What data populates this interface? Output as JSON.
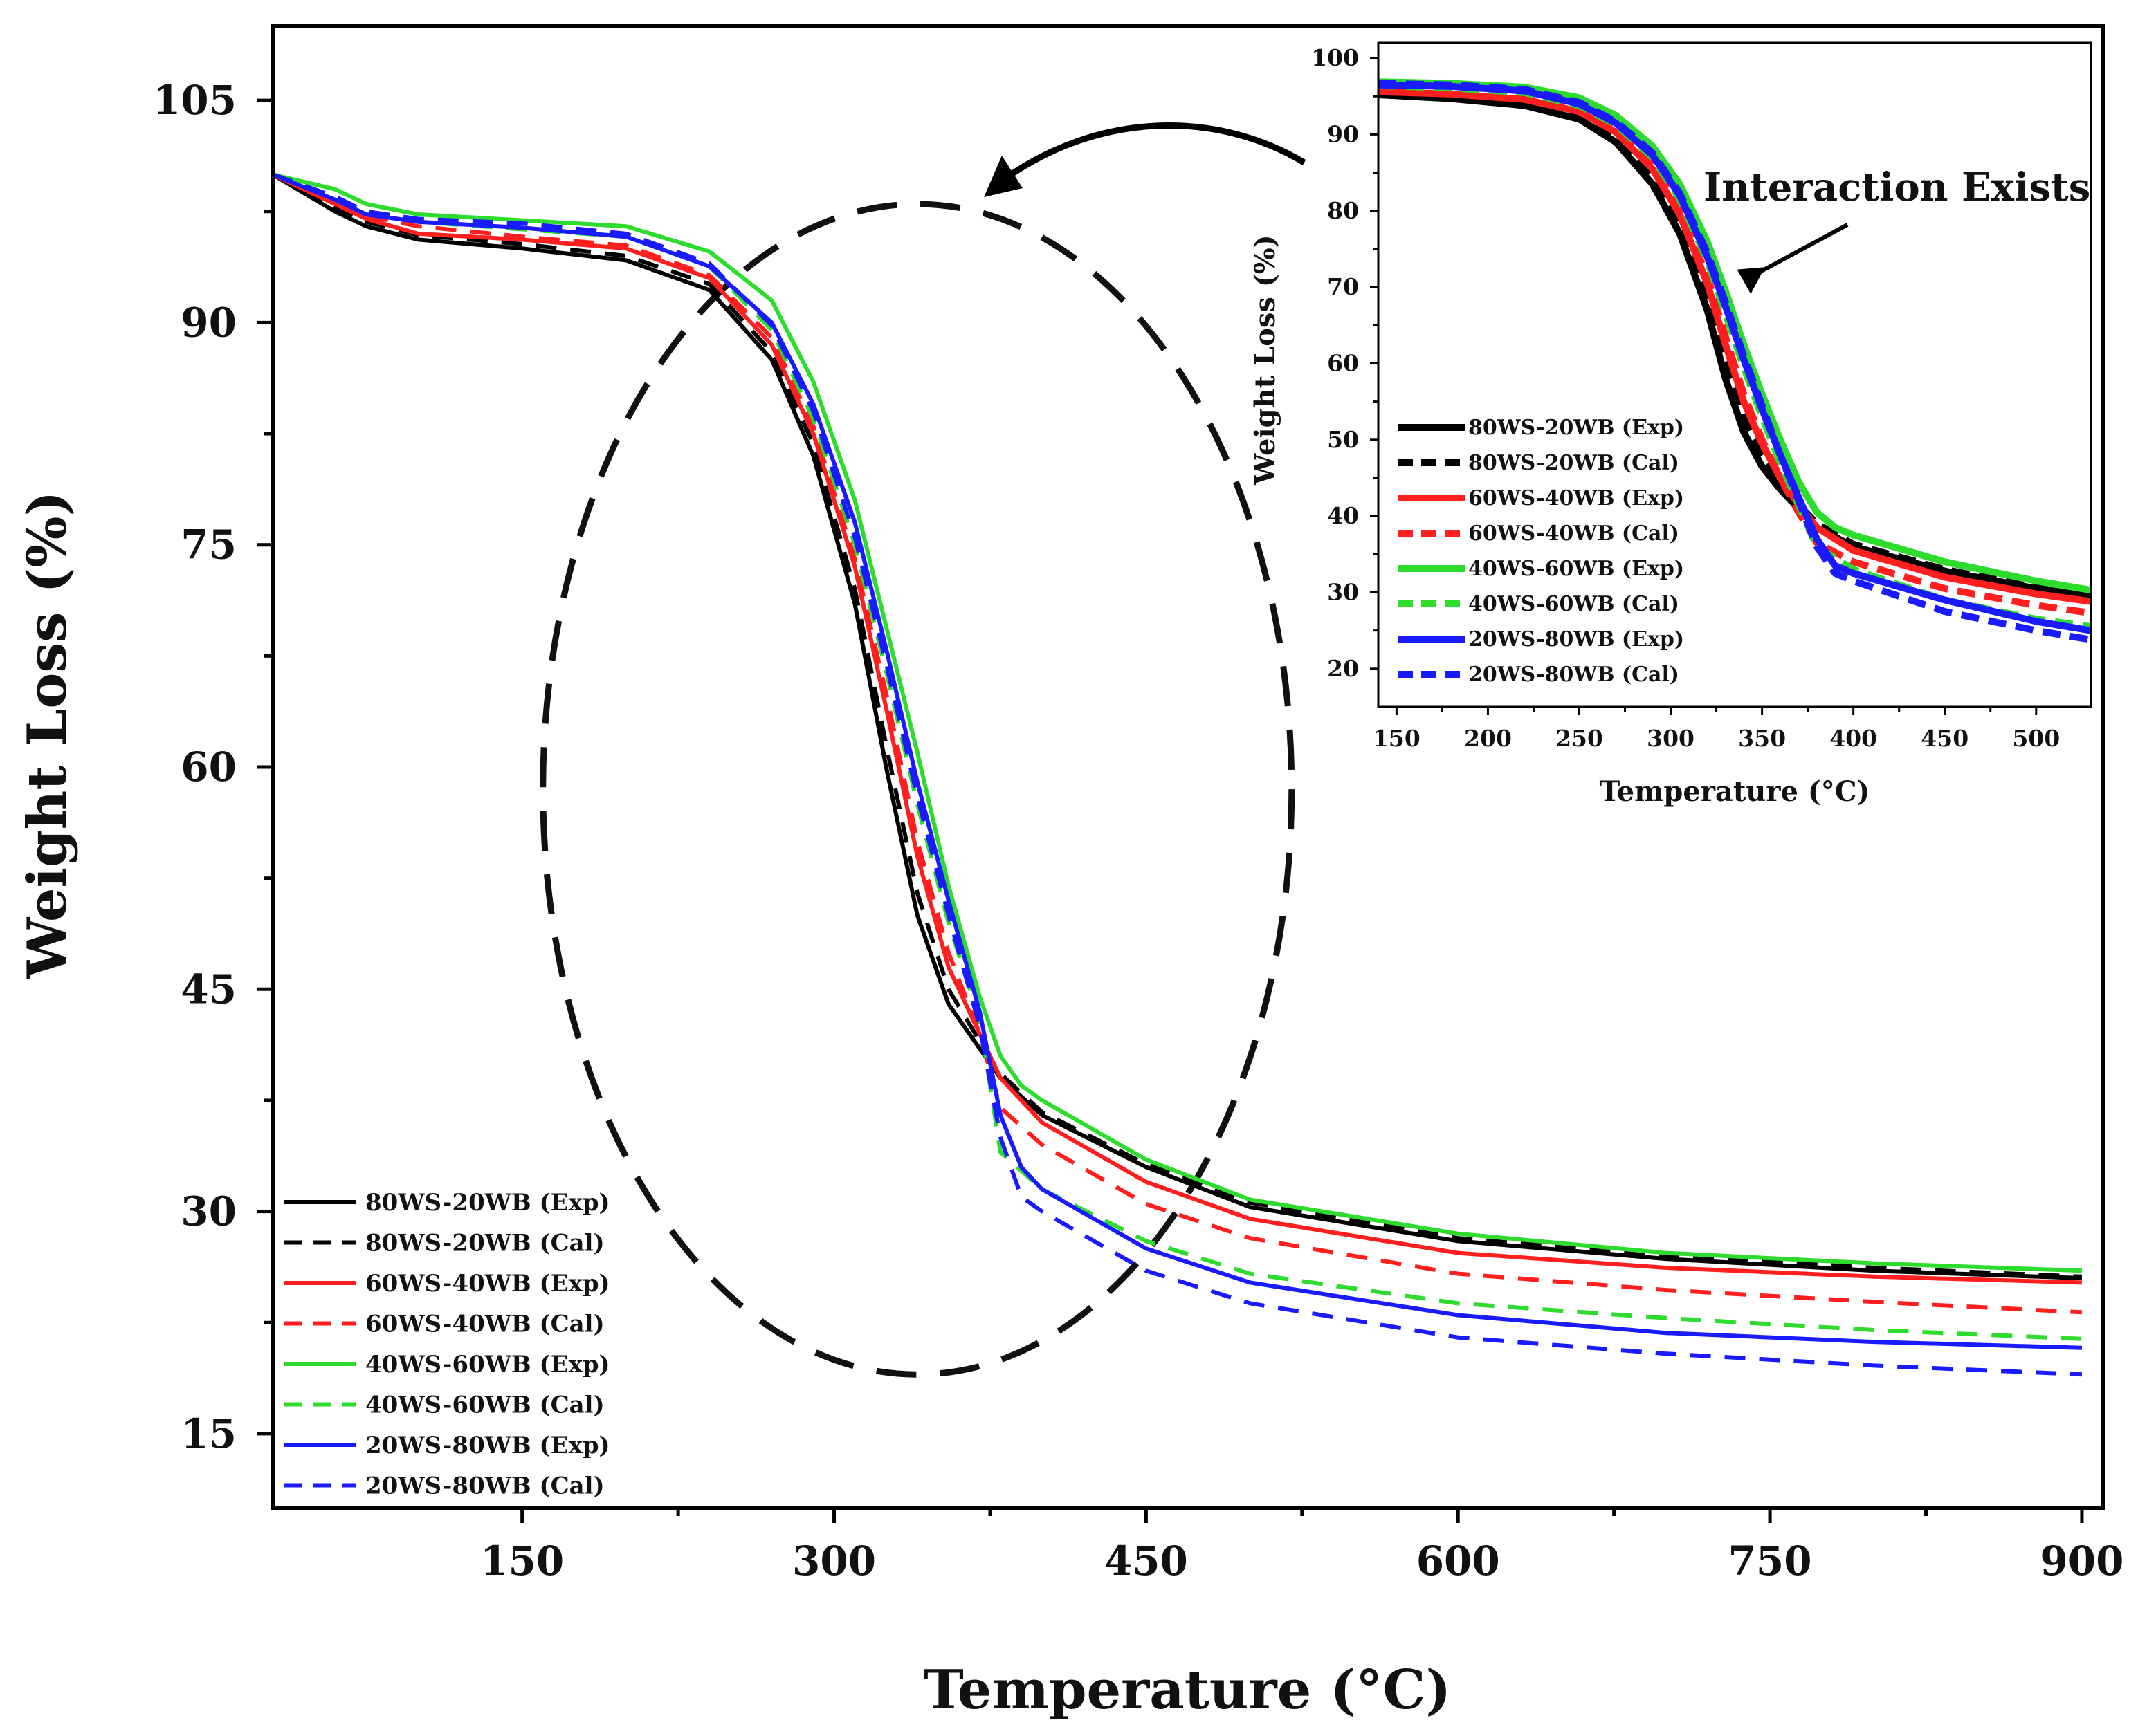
{
  "chart_data": [
    {
      "type": "line",
      "id": "main",
      "title": "",
      "xlabel": "Temperature (°C)",
      "ylabel": "Weight Loss (%)",
      "xlim": [
        30,
        910
      ],
      "ylim": [
        10,
        110
      ],
      "xticks": [
        150,
        300,
        450,
        600,
        750,
        900
      ],
      "yticks": [
        15,
        30,
        45,
        60,
        75,
        90,
        105
      ],
      "legend_position": "bottom-left",
      "series": [
        {
          "name": "80WS-20WB (Exp)",
          "color": "#000000",
          "dash": "solid",
          "x": [
            30,
            60,
            75,
            100,
            150,
            200,
            240,
            270,
            290,
            310,
            325,
            340,
            355,
            370,
            380,
            400,
            450,
            500,
            600,
            700,
            800,
            900
          ],
          "y": [
            100,
            97.5,
            96.5,
            95.6,
            95.0,
            94.2,
            92.2,
            87.5,
            81.0,
            71.0,
            60.0,
            50.0,
            44.0,
            41.0,
            39.0,
            36.5,
            33.0,
            30.3,
            28.0,
            26.8,
            26.0,
            25.5
          ]
        },
        {
          "name": "80WS-20WB (Cal)",
          "color": "#000000",
          "dash": "dashed",
          "x": [
            30,
            60,
            75,
            100,
            150,
            200,
            240,
            270,
            290,
            310,
            325,
            340,
            355,
            370,
            380,
            400,
            450,
            500,
            600,
            700,
            800,
            900
          ],
          "y": [
            100,
            97.8,
            96.8,
            95.9,
            95.3,
            94.5,
            92.6,
            88.0,
            81.8,
            72.0,
            61.5,
            51.5,
            45.0,
            41.5,
            39.3,
            36.7,
            33.2,
            30.6,
            28.2,
            27.0,
            26.2,
            25.6
          ]
        },
        {
          "name": "60WS-40WB (Exp)",
          "color": "#ff1f1f",
          "dash": "solid",
          "x": [
            30,
            60,
            75,
            100,
            150,
            200,
            240,
            270,
            290,
            310,
            325,
            340,
            355,
            370,
            380,
            400,
            450,
            500,
            600,
            700,
            800,
            900
          ],
          "y": [
            100,
            98.0,
            97.0,
            96.0,
            95.6,
            95.0,
            93.0,
            88.5,
            82.5,
            73.5,
            64.0,
            54.0,
            46.5,
            42.0,
            39.0,
            36.0,
            32.0,
            29.5,
            27.2,
            26.2,
            25.6,
            25.2
          ]
        },
        {
          "name": "60WS-40WB (Cal)",
          "color": "#ff1f1f",
          "dash": "dashed",
          "x": [
            30,
            60,
            75,
            100,
            150,
            200,
            240,
            270,
            290,
            310,
            325,
            340,
            355,
            370,
            380,
            400,
            450,
            500,
            600,
            700,
            800,
            900
          ],
          "y": [
            100,
            98.0,
            97.2,
            96.5,
            95.8,
            95.2,
            93.2,
            89.0,
            83.0,
            74.0,
            65.0,
            55.0,
            47.5,
            42.0,
            37.0,
            34.5,
            30.5,
            28.2,
            25.8,
            24.7,
            23.9,
            23.2
          ]
        },
        {
          "name": "40WS-60WB (Exp)",
          "color": "#2ddc2d",
          "dash": "solid",
          "x": [
            30,
            60,
            75,
            100,
            150,
            200,
            240,
            270,
            290,
            310,
            325,
            340,
            355,
            370,
            380,
            390,
            400,
            450,
            500,
            600,
            700,
            800,
            900
          ],
          "y": [
            100,
            99.0,
            98.0,
            97.3,
            96.9,
            96.5,
            94.8,
            91.5,
            86.0,
            78.0,
            69.5,
            61.0,
            52.0,
            44.5,
            40.5,
            38.5,
            37.5,
            33.5,
            30.8,
            28.5,
            27.2,
            26.5,
            26.0
          ]
        },
        {
          "name": "40WS-60WB (Cal)",
          "color": "#2ddc2d",
          "dash": "dashed",
          "x": [
            30,
            60,
            75,
            100,
            150,
            200,
            240,
            270,
            290,
            310,
            325,
            340,
            355,
            370,
            380,
            400,
            450,
            500,
            600,
            700,
            800,
            900
          ],
          "y": [
            100,
            98.5,
            97.5,
            96.8,
            96.3,
            95.8,
            93.8,
            89.5,
            83.5,
            75.0,
            66.5,
            57.5,
            49.5,
            43.0,
            34.0,
            31.5,
            28.0,
            25.8,
            23.8,
            22.8,
            22.0,
            21.4
          ]
        },
        {
          "name": "20WS-80WB (Exp)",
          "color": "#1a1aff",
          "dash": "solid",
          "x": [
            30,
            60,
            75,
            100,
            150,
            200,
            240,
            270,
            290,
            310,
            325,
            340,
            355,
            370,
            380,
            390,
            400,
            450,
            500,
            600,
            700,
            800,
            900
          ],
          "y": [
            100,
            98.3,
            97.3,
            96.8,
            96.4,
            95.8,
            93.8,
            90.0,
            84.5,
            76.5,
            68.0,
            59.0,
            51.0,
            43.5,
            36.5,
            33.0,
            31.5,
            27.5,
            25.2,
            23.0,
            21.8,
            21.2,
            20.8
          ]
        },
        {
          "name": "20WS-80WB (Cal)",
          "color": "#1a1aff",
          "dash": "dashed",
          "x": [
            30,
            60,
            75,
            100,
            150,
            200,
            240,
            270,
            290,
            310,
            325,
            340,
            355,
            370,
            380,
            390,
            400,
            450,
            500,
            600,
            700,
            800,
            900
          ],
          "y": [
            100,
            98.5,
            97.5,
            97.0,
            96.7,
            96.0,
            94.0,
            89.8,
            84.0,
            75.5,
            67.0,
            58.0,
            50.0,
            42.5,
            35.0,
            31.0,
            30.0,
            26.0,
            23.8,
            21.5,
            20.4,
            19.6,
            19.0
          ]
        }
      ],
      "annotation_ellipse": {
        "center_x": 340,
        "center_y": 58.5,
        "semi_x": 180,
        "semi_y": 39.5
      }
    },
    {
      "type": "line",
      "id": "inset",
      "title": "",
      "xlabel": "Temperature (°C)",
      "ylabel": "Weight Loss (%)",
      "xlim": [
        140,
        530
      ],
      "ylim": [
        15,
        102
      ],
      "xticks": [
        150,
        200,
        250,
        300,
        350,
        400,
        450,
        500
      ],
      "yticks": [
        20,
        30,
        40,
        50,
        60,
        70,
        80,
        90,
        100
      ],
      "legend_position": "bottom-left",
      "annotation": "Interaction Exists",
      "series": [
        {
          "name": "80WS-20WB (Exp)",
          "color": "#000000",
          "dash": "solid",
          "x": [
            140,
            180,
            220,
            250,
            270,
            290,
            305,
            320,
            330,
            340,
            350,
            360,
            370,
            380,
            400,
            450,
            500,
            530
          ],
          "y": [
            95.2,
            94.7,
            93.8,
            92.0,
            89.0,
            83.5,
            77.0,
            67.0,
            58.0,
            51.0,
            46.5,
            43.5,
            41.0,
            38.5,
            36.0,
            32.8,
            30.5,
            29.5
          ]
        },
        {
          "name": "80WS-20WB (Cal)",
          "color": "#000000",
          "dash": "dashed",
          "x": [
            140,
            180,
            220,
            250,
            270,
            290,
            305,
            320,
            330,
            340,
            350,
            360,
            370,
            380,
            400,
            450,
            500,
            530
          ],
          "y": [
            95.4,
            95.0,
            94.1,
            92.4,
            89.5,
            84.3,
            78.0,
            68.5,
            60.0,
            53.0,
            48.0,
            44.5,
            41.5,
            39.0,
            36.3,
            33.0,
            30.7,
            29.7
          ]
        },
        {
          "name": "60WS-40WB (Exp)",
          "color": "#ff1f1f",
          "dash": "solid",
          "x": [
            140,
            180,
            220,
            250,
            270,
            290,
            305,
            320,
            330,
            340,
            350,
            360,
            370,
            380,
            400,
            450,
            500,
            530
          ],
          "y": [
            95.6,
            95.3,
            94.6,
            93.0,
            90.3,
            85.5,
            79.5,
            70.5,
            62.5,
            55.0,
            49.5,
            45.0,
            41.5,
            38.5,
            35.5,
            32.0,
            29.8,
            28.8
          ]
        },
        {
          "name": "60WS-40WB (Cal)",
          "color": "#ff1f1f",
          "dash": "dashed",
          "x": [
            140,
            180,
            220,
            250,
            270,
            290,
            305,
            320,
            330,
            340,
            350,
            360,
            370,
            380,
            400,
            450,
            500,
            530
          ],
          "y": [
            95.8,
            95.5,
            94.8,
            93.2,
            90.6,
            86.0,
            80.0,
            71.5,
            63.5,
            56.0,
            50.0,
            45.0,
            40.5,
            36.5,
            34.0,
            30.5,
            28.3,
            27.3
          ]
        },
        {
          "name": "40WS-60WB (Exp)",
          "color": "#2ddc2d",
          "dash": "solid",
          "x": [
            140,
            180,
            220,
            250,
            270,
            290,
            305,
            320,
            330,
            340,
            350,
            360,
            370,
            380,
            390,
            400,
            450,
            500,
            530
          ],
          "y": [
            96.9,
            96.7,
            96.2,
            94.8,
            92.5,
            88.5,
            83.5,
            76.0,
            69.5,
            62.5,
            56.0,
            50.0,
            44.5,
            40.5,
            38.5,
            37.5,
            34.0,
            31.5,
            30.3
          ]
        },
        {
          "name": "40WS-60WB (Cal)",
          "color": "#2ddc2d",
          "dash": "dashed",
          "x": [
            140,
            180,
            220,
            250,
            270,
            290,
            305,
            320,
            330,
            340,
            350,
            360,
            370,
            380,
            400,
            450,
            500,
            530
          ],
          "y": [
            96.4,
            96.1,
            95.5,
            93.8,
            91.3,
            87.0,
            81.5,
            73.5,
            66.5,
            59.5,
            53.0,
            47.0,
            41.5,
            36.0,
            33.0,
            29.0,
            26.5,
            25.5
          ]
        },
        {
          "name": "20WS-80WB (Exp)",
          "color": "#1a1aff",
          "dash": "solid",
          "x": [
            140,
            180,
            220,
            250,
            270,
            290,
            305,
            320,
            330,
            340,
            350,
            360,
            370,
            380,
            390,
            400,
            450,
            500,
            530
          ],
          "y": [
            96.5,
            96.3,
            95.7,
            94.0,
            91.5,
            87.3,
            82.0,
            74.0,
            67.5,
            60.5,
            54.0,
            48.0,
            42.5,
            37.0,
            33.5,
            32.5,
            29.0,
            26.2,
            25.0
          ]
        },
        {
          "name": "20WS-80WB (Cal)",
          "color": "#1a1aff",
          "dash": "dashed",
          "x": [
            140,
            180,
            220,
            250,
            270,
            290,
            305,
            320,
            330,
            340,
            350,
            360,
            370,
            380,
            390,
            400,
            450,
            500,
            530
          ],
          "y": [
            96.7,
            96.5,
            95.9,
            94.2,
            91.7,
            87.6,
            82.3,
            74.5,
            68.0,
            61.0,
            54.5,
            48.0,
            42.0,
            36.0,
            32.5,
            31.5,
            27.5,
            25.0,
            23.8
          ]
        }
      ]
    }
  ]
}
